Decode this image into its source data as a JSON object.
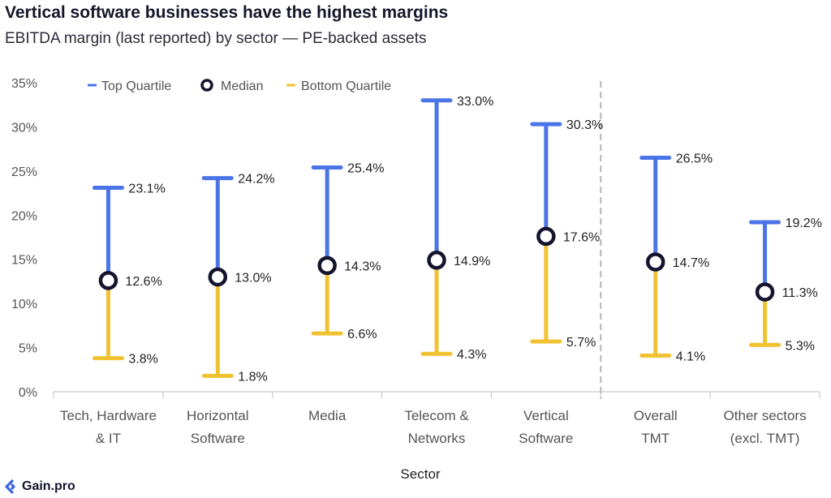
{
  "header": {
    "title": "Vertical software businesses have the highest margins",
    "subtitle": "EBITDA margin (last reported) by sector — PE-backed assets"
  },
  "footer": {
    "brand": "Gain.pro"
  },
  "colors": {
    "top_quartile": "#4a74e8",
    "bottom_quartile": "#f0c232",
    "median_stroke": "#14142e",
    "axis_text": "#555555",
    "divider": "#b5b5b5"
  },
  "chart_data": {
    "type": "range",
    "xlabel": "Sector",
    "ylabel": "",
    "ylim": [
      0,
      35
    ],
    "yticks": [
      "0%",
      "5%",
      "10%",
      "15%",
      "20%",
      "25%",
      "30%",
      "35%"
    ],
    "legend": {
      "placement": "top-left",
      "entries": [
        "Top Quartile",
        "Median",
        "Bottom Quartile"
      ]
    },
    "categories": [
      [
        "Tech, Hardware",
        "& IT"
      ],
      [
        "Horizontal",
        "Software"
      ],
      [
        "Media"
      ],
      [
        "Telecom &",
        "Networks"
      ],
      [
        "Vertical",
        "Software"
      ],
      [
        "Overall",
        "TMT"
      ],
      [
        "Other sectors",
        "(excl. TMT)"
      ]
    ],
    "divider_after_category_index": 4,
    "series": [
      {
        "name": "Top Quartile",
        "values": [
          23.1,
          24.2,
          25.4,
          33.0,
          30.3,
          26.5,
          19.2
        ],
        "labels": [
          "23.1%",
          "24.2%",
          "25.4%",
          "33.0%",
          "30.3%",
          "26.5%",
          "19.2%"
        ]
      },
      {
        "name": "Median",
        "values": [
          12.6,
          13.0,
          14.3,
          14.9,
          17.6,
          14.7,
          11.3
        ],
        "labels": [
          "12.6%",
          "13.0%",
          "14.3%",
          "14.9%",
          "17.6%",
          "14.7%",
          "11.3%"
        ]
      },
      {
        "name": "Bottom Quartile",
        "values": [
          3.8,
          1.8,
          6.6,
          4.3,
          5.7,
          4.1,
          5.3
        ],
        "labels": [
          "3.8%",
          "1.8%",
          "6.6%",
          "4.3%",
          "5.7%",
          "4.1%",
          "5.3%"
        ]
      }
    ]
  }
}
